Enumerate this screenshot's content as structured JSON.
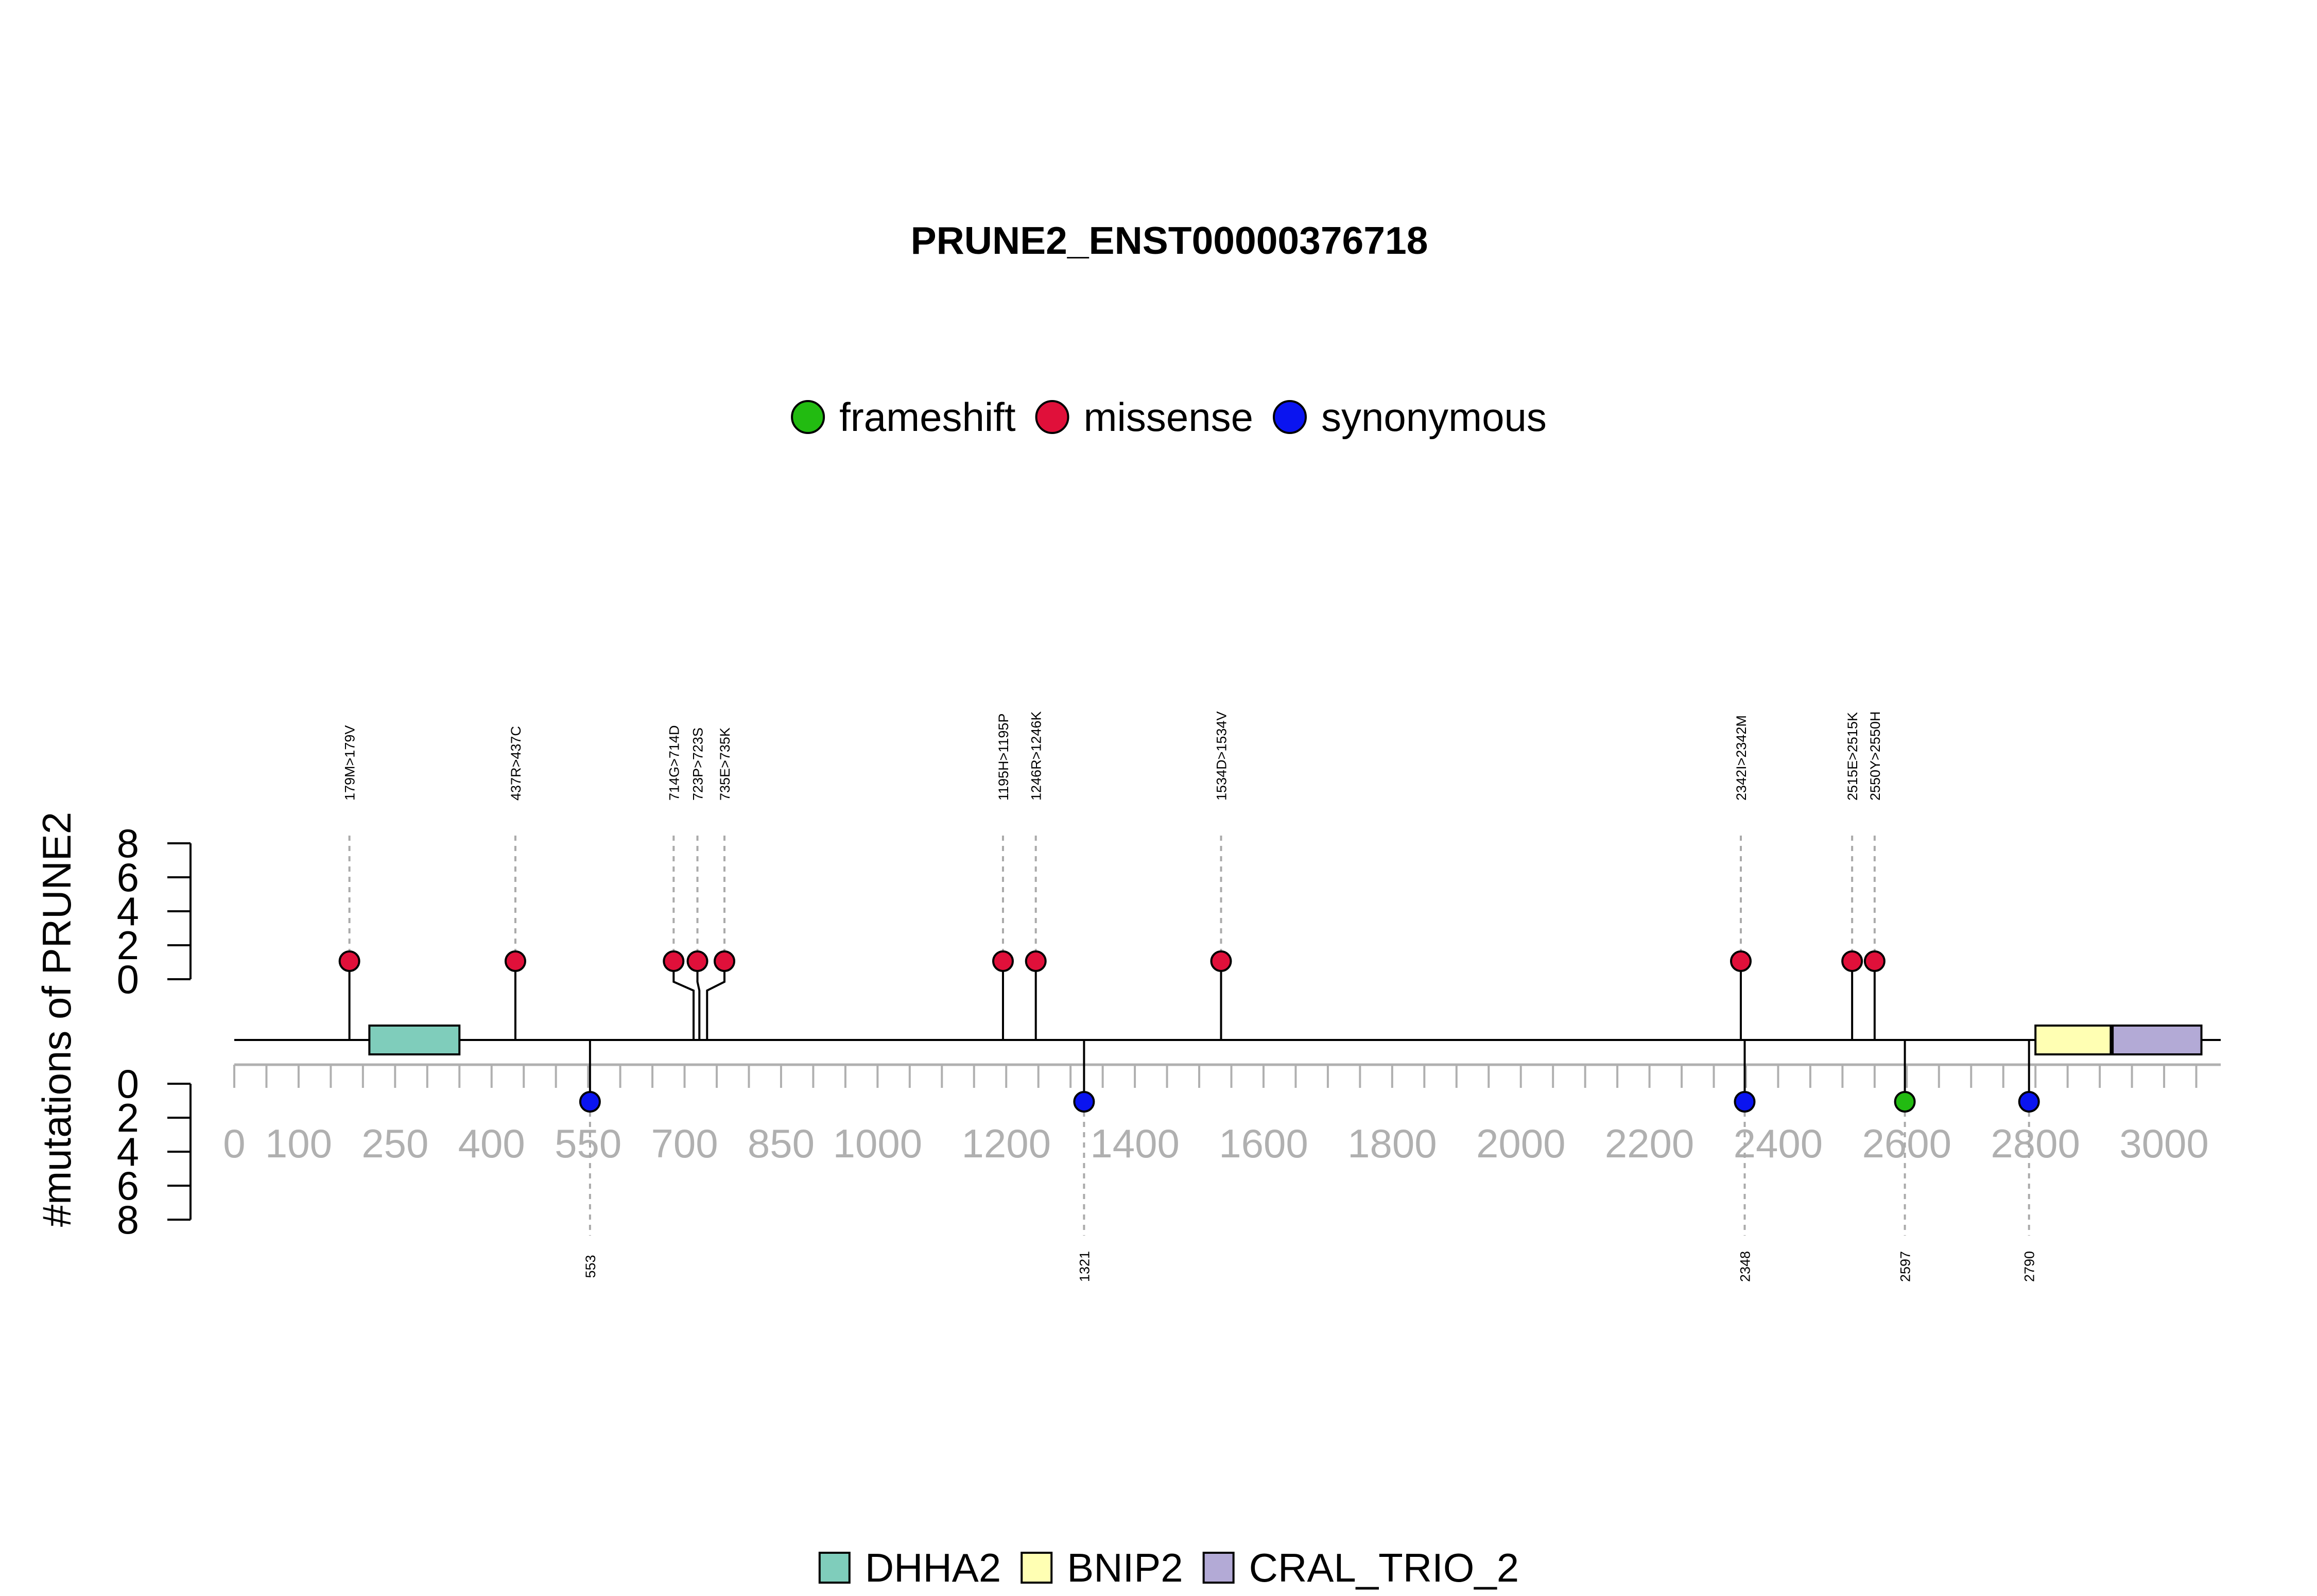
{
  "chart_data": {
    "type": "lollipop",
    "title": "PRUNE2_ENST00000376718",
    "ylabel": "#mutations of PRUNE2",
    "protein_length": 3088,
    "xlim": [
      0,
      3088
    ],
    "x_ticks": [
      0,
      100,
      250,
      400,
      550,
      700,
      850,
      1000,
      1200,
      1400,
      1600,
      1800,
      2000,
      2200,
      2400,
      2600,
      2800,
      3000
    ],
    "y_ticks": [
      0,
      2,
      4,
      6,
      8
    ],
    "ylim": [
      0,
      8
    ],
    "mutation_legend": [
      {
        "name": "frameshift",
        "color": "#22bb11"
      },
      {
        "name": "missense",
        "color": "#e0103a"
      },
      {
        "name": "synonymous",
        "color": "#0a14f0"
      }
    ],
    "domain_legend": [
      {
        "name": "DHHA2",
        "color": "#7fcdbb"
      },
      {
        "name": "BNIP2",
        "color": "#ffffb3"
      },
      {
        "name": "CRAL_TRIO_2",
        "color": "#b3aad6"
      }
    ],
    "domains": [
      {
        "name": "DHHA2",
        "start": 210,
        "end": 350,
        "color": "#7fcdbb"
      },
      {
        "name": "BNIP2",
        "start": 2800,
        "end": 2917,
        "color": "#ffffb3"
      },
      {
        "name": "CRAL_TRIO_2",
        "start": 2920,
        "end": 3058,
        "color": "#b3aad6"
      }
    ],
    "mutations_top": [
      {
        "label": "179M>179V",
        "pos": 179,
        "display_pos": 179,
        "count": 1,
        "type": "missense"
      },
      {
        "label": "437R>437C",
        "pos": 437,
        "display_pos": 437,
        "count": 1,
        "type": "missense"
      },
      {
        "label": "714G>714D",
        "pos": 714,
        "display_pos": 683,
        "count": 1,
        "type": "missense"
      },
      {
        "label": "723P>723S",
        "pos": 723,
        "display_pos": 720,
        "count": 1,
        "type": "missense"
      },
      {
        "label": "735E>735K",
        "pos": 735,
        "display_pos": 762,
        "count": 1,
        "type": "missense"
      },
      {
        "label": "1195H>1195P",
        "pos": 1195,
        "display_pos": 1195,
        "count": 1,
        "type": "missense"
      },
      {
        "label": "1246R>1246K",
        "pos": 1246,
        "display_pos": 1246,
        "count": 1,
        "type": "missense"
      },
      {
        "label": "1534D>1534V",
        "pos": 1534,
        "display_pos": 1534,
        "count": 1,
        "type": "missense"
      },
      {
        "label": "2342I>2342M",
        "pos": 2342,
        "display_pos": 2342,
        "count": 1,
        "type": "missense"
      },
      {
        "label": "2515E>2515K",
        "pos": 2515,
        "display_pos": 2515,
        "count": 1,
        "type": "missense"
      },
      {
        "label": "2550Y>2550H",
        "pos": 2550,
        "display_pos": 2550,
        "count": 1,
        "type": "missense"
      }
    ],
    "mutations_bottom": [
      {
        "label": "553",
        "pos": 553,
        "count": 1,
        "type": "synonymous"
      },
      {
        "label": "1321",
        "pos": 1321,
        "count": 1,
        "type": "synonymous"
      },
      {
        "label": "2348",
        "pos": 2348,
        "count": 1,
        "type": "synonymous"
      },
      {
        "label": "2597",
        "pos": 2597,
        "count": 1,
        "type": "frameshift"
      },
      {
        "label": "2790",
        "pos": 2790,
        "count": 1,
        "type": "synonymous"
      }
    ]
  }
}
